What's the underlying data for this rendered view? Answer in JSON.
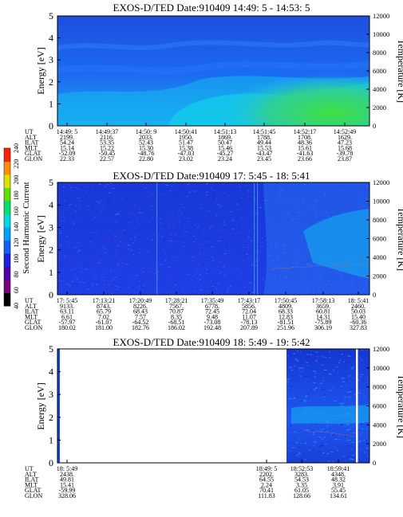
{
  "colorbar": {
    "label": "Second Harmonic Current",
    "ticks": [
      "40",
      "60",
      "80",
      "100",
      "120",
      "140",
      "160",
      "180",
      "200",
      "220",
      "240"
    ],
    "colors": [
      "#000000",
      "#7a007a",
      "#5000a8",
      "#2020e0",
      "#1060ff",
      "#00a0ff",
      "#00d8e0",
      "#00e070",
      "#60e000",
      "#e0e000",
      "#ff9000",
      "#ff2000"
    ]
  },
  "panels": [
    {
      "title": "EXOS-D/TED   Date:910409  14:49: 5 - 14:53: 5",
      "ylabel": "Energy [eV]",
      "y2label": "Temperature [K]",
      "yticks": [
        "0",
        "1",
        "2",
        "3",
        "4",
        "5"
      ],
      "y2ticks": [
        "0",
        "2000",
        "4000",
        "6000",
        "8000",
        "10000",
        "12000"
      ],
      "table": {
        "labels": [
          "UT",
          "ALT",
          "ILAT",
          "MLT",
          "GLAT",
          "GLON"
        ],
        "cols": [
          [
            "14:49: 5",
            "2199.",
            "54.24",
            "15.14",
            "-52.09",
            "22.33"
          ],
          [
            "14:49:37",
            "2116.",
            "53.35",
            "15.22",
            "-50.45",
            "22.57"
          ],
          [
            "14:50: 9",
            "2033.",
            "52.43",
            "15.30",
            "-48.76",
            "22.80"
          ],
          [
            "14:50:41",
            "1950.",
            "51.47",
            "15.38",
            "-47.03",
            "23.02"
          ],
          [
            "14:51:13",
            "1869.",
            "50.47",
            "15.46",
            "-45.27",
            "23.24"
          ],
          [
            "14:51:45",
            "1788.",
            "49.44",
            "15.53",
            "-43.47",
            "23.45"
          ],
          [
            "14:52:17",
            "1708.",
            "48.36",
            "15.61",
            "-41.63",
            "23.66"
          ],
          [
            "14:52:49",
            "1629.",
            "47.23",
            "15.68",
            "-39.78",
            "23.87"
          ]
        ]
      }
    },
    {
      "title": "EXOS-D/TED   Date:910409  17: 5:45 - 18: 5:41",
      "ylabel": "Energy [eV]",
      "y2label": "Temperature [K]",
      "yticks": [
        "0",
        "1",
        "2",
        "3",
        "4",
        "5"
      ],
      "y2ticks": [
        "0",
        "2000",
        "4000",
        "6000",
        "8000",
        "10000",
        "12000"
      ],
      "table": {
        "labels": [
          "UT",
          "ALT",
          "ILAT",
          "MLT",
          "GLAT",
          "GLON"
        ],
        "cols": [
          [
            "17: 5:45",
            "9133.",
            "63.11",
            "6.61",
            "-57.97",
            "180.02"
          ],
          [
            "17:13:21",
            "8743.",
            "65.79",
            "7.02",
            "-61.07",
            "181.00"
          ],
          [
            "17:20:49",
            "8226.",
            "68.43",
            "7.57",
            "-64.52",
            "182.76"
          ],
          [
            "17:28:21",
            "7567.",
            "70.87",
            "8.35",
            "-68.51",
            "186.02"
          ],
          [
            "17:35:49",
            "6778.",
            "72.45",
            "9.48",
            "-73.08",
            "192.48"
          ],
          [
            "17:43:17",
            "5856.",
            "72.04",
            "11.07",
            "-78.13",
            "207.89"
          ],
          [
            "17:50:45",
            "4809.",
            "68.33",
            "12.83",
            "-81.51",
            "251.96"
          ],
          [
            "17:58:13",
            "3659.",
            "60.81",
            "14.31",
            "-75.89",
            "306.19"
          ],
          [
            "18: 5:41",
            "2460.",
            "50.03",
            "15.40",
            "-60.36",
            "327.83"
          ]
        ]
      }
    },
    {
      "title": "EXOS-D/TED   Date:910409  18: 5:49 - 19: 5:42",
      "ylabel": "Energy [eV]",
      "y2label": "Temperature [K]",
      "yticks": [
        "0",
        "1",
        "2",
        "3",
        "4",
        "5"
      ],
      "y2ticks": [
        "0",
        "2000",
        "4000",
        "6000",
        "8000",
        "10000",
        "12000"
      ],
      "table": {
        "labels": [
          "UT",
          "ALT",
          "ILAT",
          "MLT",
          "GLAT",
          "GLON"
        ],
        "cols": [
          [
            "18: 5:49",
            "2438.",
            "49.81",
            "15.41",
            "-59.99",
            "328.06"
          ],
          [
            "18:49: 5",
            "2202.",
            "64.55",
            "2.24",
            "70.41",
            "111.83"
          ],
          [
            "18:52:53",
            "3283.",
            "54.53",
            "3.35",
            "61.05",
            "128.66"
          ],
          [
            "18:59:41",
            "4348.",
            "48.32",
            "3.91",
            "55.45",
            "134.61"
          ]
        ]
      }
    }
  ],
  "chart_data": [
    {
      "type": "heatmap",
      "title": "EXOS-D/TED   Date:910409  14:49: 5 - 14:53: 5",
      "xlabel": "",
      "ylabel": "Energy [eV]",
      "y2label": "Temperature [K]",
      "xlim": [
        "14:49: 5",
        "14:53: 5"
      ],
      "ylim": [
        0,
        5
      ],
      "y2lim": [
        0,
        12000
      ],
      "colorbar_label": "Second Harmonic Current",
      "colorbar_range": [
        40,
        240
      ]
    },
    {
      "type": "heatmap",
      "title": "EXOS-D/TED   Date:910409  17: 5:45 - 18: 5:41",
      "xlabel": "",
      "ylabel": "Energy [eV]",
      "y2label": "Temperature [K]",
      "xlim": [
        "17: 5:45",
        "18: 5:41"
      ],
      "ylim": [
        0,
        5
      ],
      "y2lim": [
        0,
        12000
      ],
      "colorbar_label": "Second Harmonic Current",
      "colorbar_range": [
        40,
        240
      ]
    },
    {
      "type": "heatmap",
      "title": "EXOS-D/TED   Date:910409  18: 5:49 - 19: 5:42",
      "xlabel": "",
      "ylabel": "Energy [eV]",
      "y2label": "Temperature [K]",
      "xlim": [
        "18: 5:49",
        "19: 5:42"
      ],
      "ylim": [
        0,
        5
      ],
      "y2lim": [
        0,
        12000
      ],
      "colorbar_label": "Second Harmonic Current",
      "colorbar_range": [
        40,
        240
      ],
      "data_gap": [
        "18: 5:49",
        "18:49: 5"
      ]
    }
  ]
}
